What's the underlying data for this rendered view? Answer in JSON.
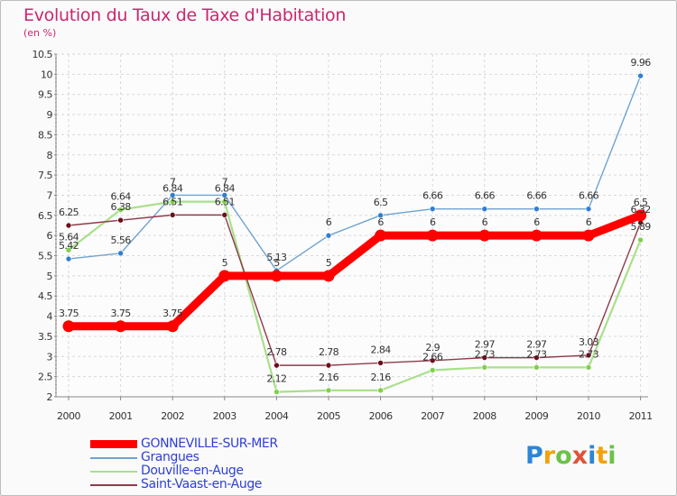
{
  "title": "Evolution du Taux de Taxe d'Habitation",
  "subtitle": "(en %)",
  "logo": {
    "p": "P",
    "r": "r",
    "o": "o",
    "x": "x",
    "i": "i",
    "t": "t",
    "i2": "i"
  },
  "colors": {
    "gonneville": "#ff0000",
    "grangues": "#6fa3d1",
    "douville": "#a9e08a",
    "saintvaast": "#8e3b4c",
    "grangues_marker": "#2f7fd0",
    "douville_marker": "#7ed14a",
    "saintvaast_marker": "#6b0f1a",
    "title": "#c8286f"
  },
  "chart_data": {
    "type": "line",
    "title": "Evolution du Taux de Taxe d'Habitation",
    "ylabel": "(en %)",
    "xlabel": "",
    "ylim": [
      2,
      10.5
    ],
    "yticks": [
      "2",
      "2.5",
      "3",
      "3.5",
      "4",
      "4.5",
      "5",
      "5.5",
      "6",
      "6.5",
      "7",
      "7.5",
      "8",
      "8.5",
      "9",
      "9.5",
      "10",
      "10.5"
    ],
    "categories": [
      "2000",
      "2001",
      "2002",
      "2003",
      "2004",
      "2005",
      "2006",
      "2007",
      "2008",
      "2009",
      "2010",
      "2011"
    ],
    "grid": true,
    "legend_position": "bottom-left",
    "series": [
      {
        "key": "gonneville",
        "name": "GONNEVILLE-SUR-MER",
        "values": [
          3.75,
          3.75,
          3.75,
          5,
          5,
          5,
          6,
          6,
          6,
          6,
          6,
          6.5
        ],
        "labels": [
          "3.75",
          "3.75",
          "3.75",
          "5",
          "5",
          "5",
          "6",
          "6",
          "6",
          "6",
          "6",
          "6.5"
        ]
      },
      {
        "key": "grangues",
        "name": "Grangues",
        "values": [
          5.42,
          5.56,
          7,
          7,
          5.13,
          6,
          6.5,
          6.66,
          6.66,
          6.66,
          6.66,
          9.96
        ],
        "labels": [
          "5.42",
          "5.56",
          "7",
          "7",
          "5.13",
          "6",
          "6.5",
          "6.66",
          "6.66",
          "6.66",
          "6.66",
          "9.96"
        ]
      },
      {
        "key": "douville",
        "name": "Douville-en-Auge",
        "values": [
          5.64,
          6.64,
          6.84,
          6.84,
          2.12,
          2.16,
          2.16,
          2.66,
          2.73,
          2.73,
          2.73,
          5.89
        ],
        "labels": [
          "5.64",
          "6.64",
          "6.84",
          "6.84",
          "2.12",
          "2.16",
          "2.16",
          "2.66",
          "2.73",
          "2.73",
          "2.73",
          "5.89"
        ]
      },
      {
        "key": "saintvaast",
        "name": "Saint-Vaast-en-Auge",
        "values": [
          6.25,
          6.38,
          6.51,
          6.51,
          2.78,
          2.78,
          2.84,
          2.9,
          2.97,
          2.97,
          3.03,
          6.32
        ],
        "labels": [
          "6.25",
          "6.38",
          "6.51",
          "6.51",
          "2.78",
          "2.78",
          "2.84",
          "2.9",
          "2.97",
          "2.97",
          "3.03",
          "6.32"
        ]
      }
    ]
  }
}
